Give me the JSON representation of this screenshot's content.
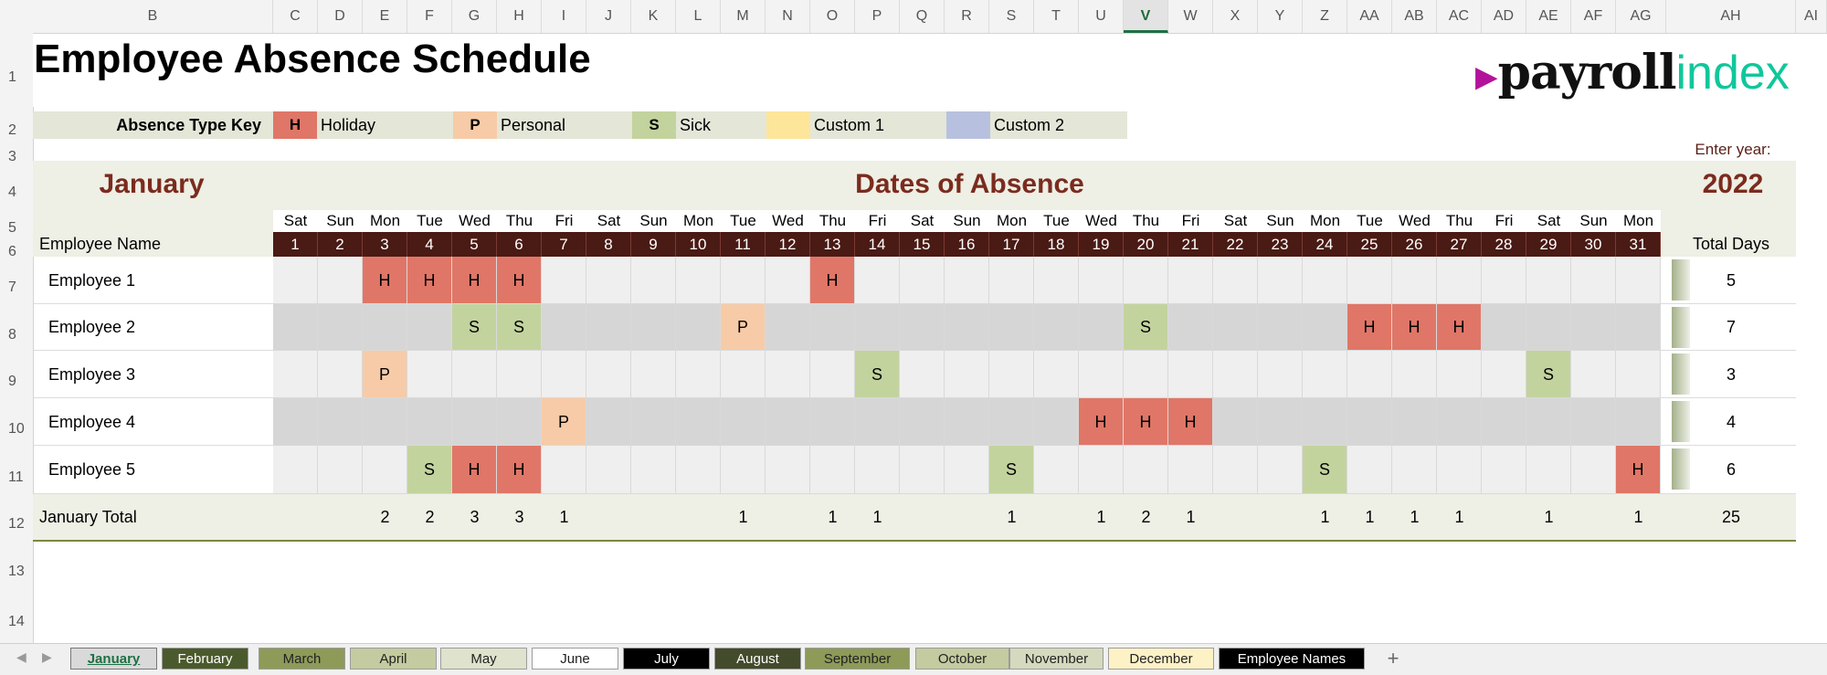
{
  "columns": [
    "B",
    "C",
    "D",
    "E",
    "F",
    "G",
    "H",
    "I",
    "J",
    "K",
    "L",
    "M",
    "N",
    "O",
    "P",
    "Q",
    "R",
    "S",
    "T",
    "U",
    "V",
    "W",
    "X",
    "Y",
    "Z",
    "AA",
    "AB",
    "AC",
    "AD",
    "AE",
    "AF",
    "AG",
    "AH",
    "AI"
  ],
  "active_column": "V",
  "rows": [
    "1",
    "2",
    "3",
    "4",
    "5",
    "6",
    "7",
    "8",
    "9",
    "10",
    "11",
    "12",
    "13",
    "14"
  ],
  "title": "Employee Absence Schedule",
  "logo": {
    "arrow": "▶",
    "part1": "payroll",
    "part2": "index",
    "part1_color": "#111111",
    "part2_color": "#10c79b",
    "arrow_color": "#b3139b"
  },
  "key": {
    "label": "Absence Type Key",
    "items": [
      {
        "code": "H",
        "label": "Holiday",
        "color": "#e07667"
      },
      {
        "code": "P",
        "label": "Personal",
        "color": "#f7cba7"
      },
      {
        "code": "S",
        "label": "Sick",
        "color": "#c3d39e"
      },
      {
        "code": "",
        "label": "Custom 1",
        "color": "#fde59a"
      },
      {
        "code": "",
        "label": "Custom 2",
        "color": "#b7c1df"
      }
    ]
  },
  "enter_year_label": "Enter year:",
  "year": "2022",
  "month": "January",
  "dates_heading": "Dates of Absence",
  "employee_header": "Employee Name",
  "total_header": "Total Days",
  "weekdays": [
    "Sat",
    "Sun",
    "Mon",
    "Tue",
    "Wed",
    "Thu",
    "Fri",
    "Sat",
    "Sun",
    "Mon",
    "Tue",
    "Wed",
    "Thu",
    "Fri",
    "Sat",
    "Sun",
    "Mon",
    "Tue",
    "Wed",
    "Thu",
    "Fri",
    "Sat",
    "Sun",
    "Mon",
    "Tue",
    "Wed",
    "Thu",
    "Fri",
    "Sat",
    "Sun",
    "Mon"
  ],
  "days": [
    "1",
    "2",
    "3",
    "4",
    "5",
    "6",
    "7",
    "8",
    "9",
    "10",
    "11",
    "12",
    "13",
    "14",
    "15",
    "16",
    "17",
    "18",
    "19",
    "20",
    "21",
    "22",
    "23",
    "24",
    "25",
    "26",
    "27",
    "28",
    "29",
    "30",
    "31"
  ],
  "employees": [
    {
      "name": "Employee 1",
      "total": "5",
      "absences": {
        "3": "H",
        "4": "H",
        "5": "H",
        "6": "H",
        "13": "H"
      }
    },
    {
      "name": "Employee 2",
      "total": "7",
      "absences": {
        "5": "S",
        "6": "S",
        "11": "P",
        "20": "S",
        "25": "H",
        "26": "H",
        "27": "H"
      }
    },
    {
      "name": "Employee 3",
      "total": "3",
      "absences": {
        "3": "P",
        "14": "S",
        "29": "S"
      }
    },
    {
      "name": "Employee 4",
      "total": "4",
      "absences": {
        "7": "P",
        "19": "H",
        "20": "H",
        "21": "H"
      }
    },
    {
      "name": "Employee 5",
      "total": "6",
      "absences": {
        "4": "S",
        "5": "H",
        "6": "H",
        "17": "S",
        "24": "S",
        "31": "H"
      }
    }
  ],
  "month_total_label": "January Total",
  "month_totals": [
    "",
    "",
    "2",
    "2",
    "3",
    "3",
    "1",
    "",
    "",
    "",
    "1",
    "",
    "1",
    "1",
    "",
    "",
    "1",
    "",
    "1",
    "2",
    "1",
    "",
    "",
    "1",
    "1",
    "1",
    "1",
    "",
    "1",
    "",
    "1"
  ],
  "grand_total": "25",
  "tabs": [
    {
      "label": "January",
      "bg": "#d9d9d9",
      "fg": "#1d7044",
      "active": true
    },
    {
      "label": "February",
      "bg": "#4b5a2c",
      "fg": "#ffffff"
    },
    {
      "label": "March",
      "bg": "#8e9a58",
      "fg": "#222222"
    },
    {
      "label": "April",
      "bg": "#c4cba0",
      "fg": "#222222"
    },
    {
      "label": "May",
      "bg": "#dfe2cc",
      "fg": "#222222"
    },
    {
      "label": "June",
      "bg": "#ffffff",
      "fg": "#222222"
    },
    {
      "label": "July",
      "bg": "#000000",
      "fg": "#ffffff"
    },
    {
      "label": "August",
      "bg": "#424b2b",
      "fg": "#ffffff"
    },
    {
      "label": "September",
      "bg": "#8e9a58",
      "fg": "#222222"
    },
    {
      "label": "October",
      "bg": "#c4cba0",
      "fg": "#222222"
    },
    {
      "label": "November",
      "bg": "#d5d9bd",
      "fg": "#222222"
    },
    {
      "label": "December",
      "bg": "#fdf1c6",
      "fg": "#222222"
    },
    {
      "label": "Employee Names",
      "bg": "#000000",
      "fg": "#ffffff"
    }
  ],
  "add_sheet": "+",
  "colors": {
    "band": "#eeefe5",
    "dark_red": "#7b2b1e",
    "day_header": "#4a1a14",
    "grid_light": "#efefef",
    "grid_dark": "#d6d6d6"
  }
}
